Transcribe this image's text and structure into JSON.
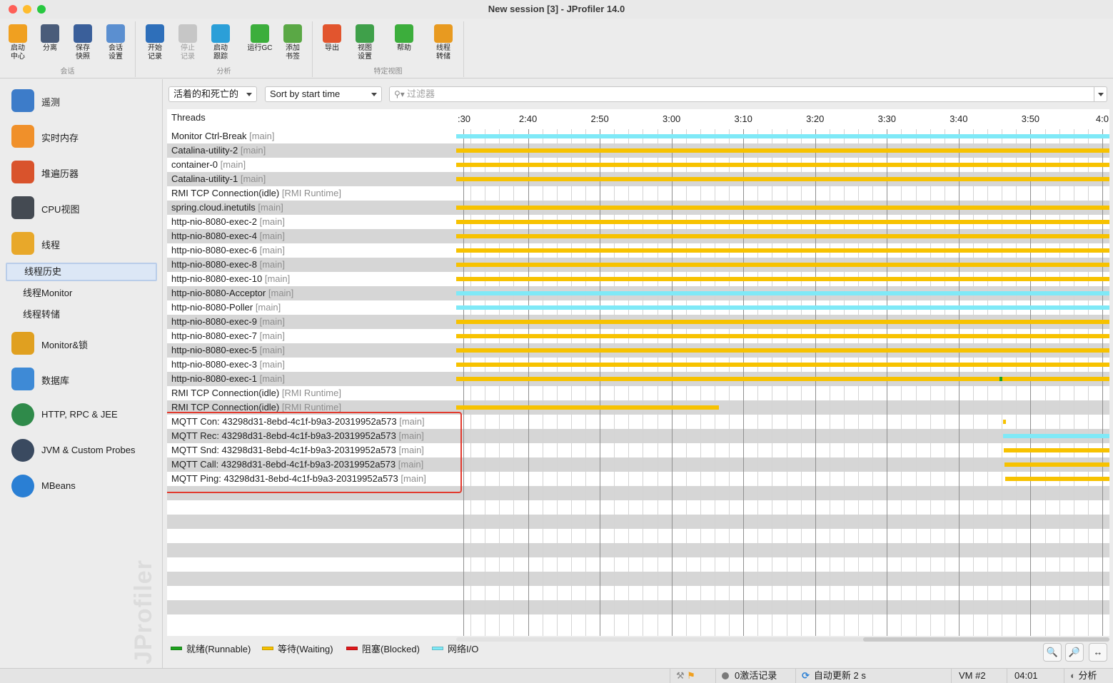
{
  "window": {
    "title": "New session [3] - JProfiler 14.0"
  },
  "toolbar": {
    "groups": [
      {
        "label": "会话"
      },
      {
        "label": "分析"
      },
      {
        "label": "特定视图"
      }
    ],
    "buttons": [
      {
        "label": "启动\n中心",
        "icon": "start-center-icon",
        "color": "#f0a020",
        "enabled": true
      },
      {
        "label": "分离",
        "icon": "detach-icon",
        "color": "#4a5c7a",
        "enabled": true
      },
      {
        "label": "保存\n快照",
        "icon": "save-snapshot-icon",
        "color": "#3a5f9a",
        "enabled": true
      },
      {
        "label": "会话\n设置",
        "icon": "session-settings-icon",
        "color": "#5b8fd0",
        "enabled": true
      },
      {
        "label": "开始\n记录",
        "icon": "start-recording-icon",
        "color": "#2e6fba",
        "enabled": true
      },
      {
        "label": "停止\n记录",
        "icon": "stop-recording-icon",
        "color": "#9a9a9a",
        "enabled": false
      },
      {
        "label": "启动\n跟踪",
        "icon": "start-tracking-icon",
        "color": "#2b9fd8",
        "enabled": true
      },
      {
        "label": "运行GC",
        "icon": "run-gc-icon",
        "color": "#3cae3c",
        "enabled": true
      },
      {
        "label": "添加\n书签",
        "icon": "add-bookmark-icon",
        "color": "#5aa845",
        "enabled": true
      },
      {
        "label": "导出",
        "icon": "export-icon",
        "color": "#e2552e",
        "enabled": true
      },
      {
        "label": "视图\n设置",
        "icon": "view-settings-icon",
        "color": "#3fa04a",
        "enabled": true
      },
      {
        "label": "帮助",
        "icon": "help-icon",
        "color": "#3cae3c",
        "enabled": true
      },
      {
        "label": "线程\n转储",
        "icon": "thread-dump-icon",
        "color": "#e89a20",
        "enabled": true
      }
    ]
  },
  "sidebar": {
    "items": [
      {
        "label": "遥测",
        "icon": "telemetry-icon",
        "color": "#3d7cc9"
      },
      {
        "label": "实时内存",
        "icon": "live-memory-icon",
        "color": "#f0902a"
      },
      {
        "label": "堆遍历器",
        "icon": "heap-walker-icon",
        "color": "#d9532c"
      },
      {
        "label": "CPU视图",
        "icon": "cpu-views-icon",
        "color": "#444a52"
      },
      {
        "label": "线程",
        "icon": "threads-icon",
        "color": "#e8a82a"
      }
    ],
    "subitems": [
      {
        "label": "线程历史",
        "selected": true
      },
      {
        "label": "线程Monitor",
        "selected": false
      },
      {
        "label": "线程转储",
        "selected": false
      }
    ],
    "items2": [
      {
        "label": "Monitor&锁",
        "icon": "lock-icon",
        "color": "#e0a020"
      },
      {
        "label": "数据库",
        "icon": "database-icon",
        "color": "#3e8ad6"
      },
      {
        "label": "HTTP, RPC & JEE",
        "icon": "globe-icon",
        "color": "#2f8a4a"
      },
      {
        "label": "JVM & Custom Probes",
        "icon": "gauge-icon",
        "color": "#3a4a60"
      },
      {
        "label": "MBeans",
        "icon": "mbeans-icon",
        "color": "#2a7fd4"
      }
    ],
    "watermark": "JProfiler"
  },
  "filters": {
    "liveness": "活着的和死亡的",
    "sort": "Sort by start time",
    "filter_placeholder": "过滤器"
  },
  "threads_header": "Threads",
  "timeline": {
    "ticks": [
      ":30",
      "2:40",
      "2:50",
      "3:00",
      "3:10",
      "3:20",
      "3:30",
      "3:40",
      "3:50",
      "4:0"
    ],
    "range_seconds": [
      150,
      241
    ]
  },
  "threads": [
    {
      "name": "Monitor Ctrl-Break",
      "group": "[main]",
      "segments": [
        {
          "state": "net",
          "start": 150,
          "end": 241
        }
      ]
    },
    {
      "name": "Catalina-utility-2",
      "group": "[main]",
      "segments": [
        {
          "state": "wait",
          "start": 150,
          "end": 241
        }
      ]
    },
    {
      "name": "container-0",
      "group": "[main]",
      "segments": [
        {
          "state": "wait",
          "start": 150,
          "end": 241
        }
      ]
    },
    {
      "name": "Catalina-utility-1",
      "group": "[main]",
      "segments": [
        {
          "state": "wait",
          "start": 150,
          "end": 241
        }
      ]
    },
    {
      "name": "RMI TCP Connection(idle)",
      "group": "[RMI Runtime]",
      "segments": []
    },
    {
      "name": "spring.cloud.inetutils",
      "group": "[main]",
      "segments": [
        {
          "state": "wait",
          "start": 150,
          "end": 241
        }
      ]
    },
    {
      "name": "http-nio-8080-exec-2",
      "group": "[main]",
      "segments": [
        {
          "state": "wait",
          "start": 150,
          "end": 241
        }
      ]
    },
    {
      "name": "http-nio-8080-exec-4",
      "group": "[main]",
      "segments": [
        {
          "state": "wait",
          "start": 150,
          "end": 241
        }
      ]
    },
    {
      "name": "http-nio-8080-exec-6",
      "group": "[main]",
      "segments": [
        {
          "state": "wait",
          "start": 150,
          "end": 241
        }
      ]
    },
    {
      "name": "http-nio-8080-exec-8",
      "group": "[main]",
      "segments": [
        {
          "state": "wait",
          "start": 150,
          "end": 241
        }
      ]
    },
    {
      "name": "http-nio-8080-exec-10",
      "group": "[main]",
      "segments": [
        {
          "state": "wait",
          "start": 150,
          "end": 241
        }
      ]
    },
    {
      "name": "http-nio-8080-Acceptor",
      "group": "[main]",
      "segments": [
        {
          "state": "net",
          "start": 150,
          "end": 241
        }
      ]
    },
    {
      "name": "http-nio-8080-Poller",
      "group": "[main]",
      "segments": [
        {
          "state": "net",
          "start": 150,
          "end": 241
        }
      ]
    },
    {
      "name": "http-nio-8080-exec-9",
      "group": "[main]",
      "segments": [
        {
          "state": "wait",
          "start": 150,
          "end": 241
        }
      ]
    },
    {
      "name": "http-nio-8080-exec-7",
      "group": "[main]",
      "segments": [
        {
          "state": "wait",
          "start": 150,
          "end": 241
        }
      ]
    },
    {
      "name": "http-nio-8080-exec-5",
      "group": "[main]",
      "segments": [
        {
          "state": "wait",
          "start": 150,
          "end": 241
        }
      ]
    },
    {
      "name": "http-nio-8080-exec-3",
      "group": "[main]",
      "segments": [
        {
          "state": "wait",
          "start": 150,
          "end": 241
        }
      ]
    },
    {
      "name": "http-nio-8080-exec-1",
      "group": "[main]",
      "segments": [
        {
          "state": "wait",
          "start": 150,
          "end": 225.7
        },
        {
          "state": "run",
          "start": 225.7,
          "end": 226.1
        },
        {
          "state": "wait",
          "start": 226.1,
          "end": 241
        }
      ]
    },
    {
      "name": "RMI TCP Connection(idle)",
      "group": "[RMI Runtime]",
      "segments": []
    },
    {
      "name": "RMI TCP Connection(idle)",
      "group": "[RMI Runtime]",
      "segments": [
        {
          "state": "wait",
          "start": 150,
          "end": 186.6
        }
      ]
    },
    {
      "name": "MQTT Con: 43298d31-8ebd-4c1f-b9a3-20319952a573",
      "group": "[main]",
      "segments": [
        {
          "state": "wait",
          "start": 226.2,
          "end": 226.6
        }
      ]
    },
    {
      "name": "MQTT Rec: 43298d31-8ebd-4c1f-b9a3-20319952a573",
      "group": "[main]",
      "segments": [
        {
          "state": "net",
          "start": 226.2,
          "end": 241
        }
      ]
    },
    {
      "name": "MQTT Snd: 43298d31-8ebd-4c1f-b9a3-20319952a573",
      "group": "[main]",
      "segments": [
        {
          "state": "wait",
          "start": 226.3,
          "end": 241
        }
      ]
    },
    {
      "name": "MQTT Call: 43298d31-8ebd-4c1f-b9a3-20319952a573",
      "group": "[main]",
      "segments": [
        {
          "state": "wait",
          "start": 226.4,
          "end": 241
        }
      ]
    },
    {
      "name": "MQTT Ping: 43298d31-8ebd-4c1f-b9a3-20319952a573",
      "group": "[main]",
      "segments": [
        {
          "state": "wait",
          "start": 226.5,
          "end": 241
        }
      ]
    }
  ],
  "state_colors": {
    "run": "#1ea31e",
    "wait": "#f7c200",
    "blocked": "#e0181b",
    "net": "#7fe9f7"
  },
  "legend": [
    {
      "label": "就绪(Runnable)",
      "color": "#1ea31e"
    },
    {
      "label": "等待(Waiting)",
      "color": "#f7c200"
    },
    {
      "label": "阻塞(Blocked)",
      "color": "#e0181b"
    },
    {
      "label": "网络I/O",
      "color": "#7fe9f7"
    }
  ],
  "zoom": {
    "in": "zoom-in-icon",
    "out": "zoom-out-icon",
    "fit": "fit-width-icon"
  },
  "statusbar": {
    "active_recordings": "0激活记录",
    "auto_update": "自动更新 2 s",
    "vm": "VM #2",
    "time": "04:01",
    "mode": "分析"
  }
}
